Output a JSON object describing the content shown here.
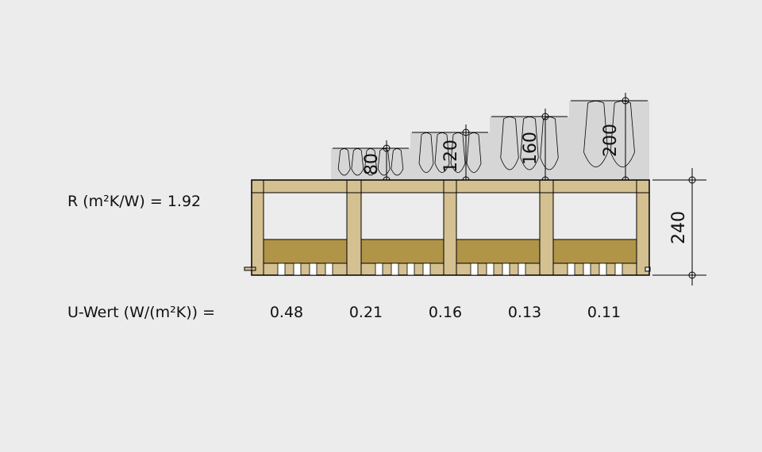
{
  "r_label": "R (m²K/W) = 1.92",
  "u_label": "U-Wert (W/(m²K)) =",
  "u_values": [
    "0.48",
    "0.21",
    "0.16",
    "0.13",
    "0.11"
  ],
  "insulation_thicknesses": [
    "80",
    "120",
    "160",
    "200"
  ],
  "floor_thickness": "240",
  "colors": {
    "background": "#ececec",
    "timber": "#d4c090",
    "fill_layer": "#b09548",
    "insulation": "#d6d6d6",
    "line": "#000000"
  }
}
